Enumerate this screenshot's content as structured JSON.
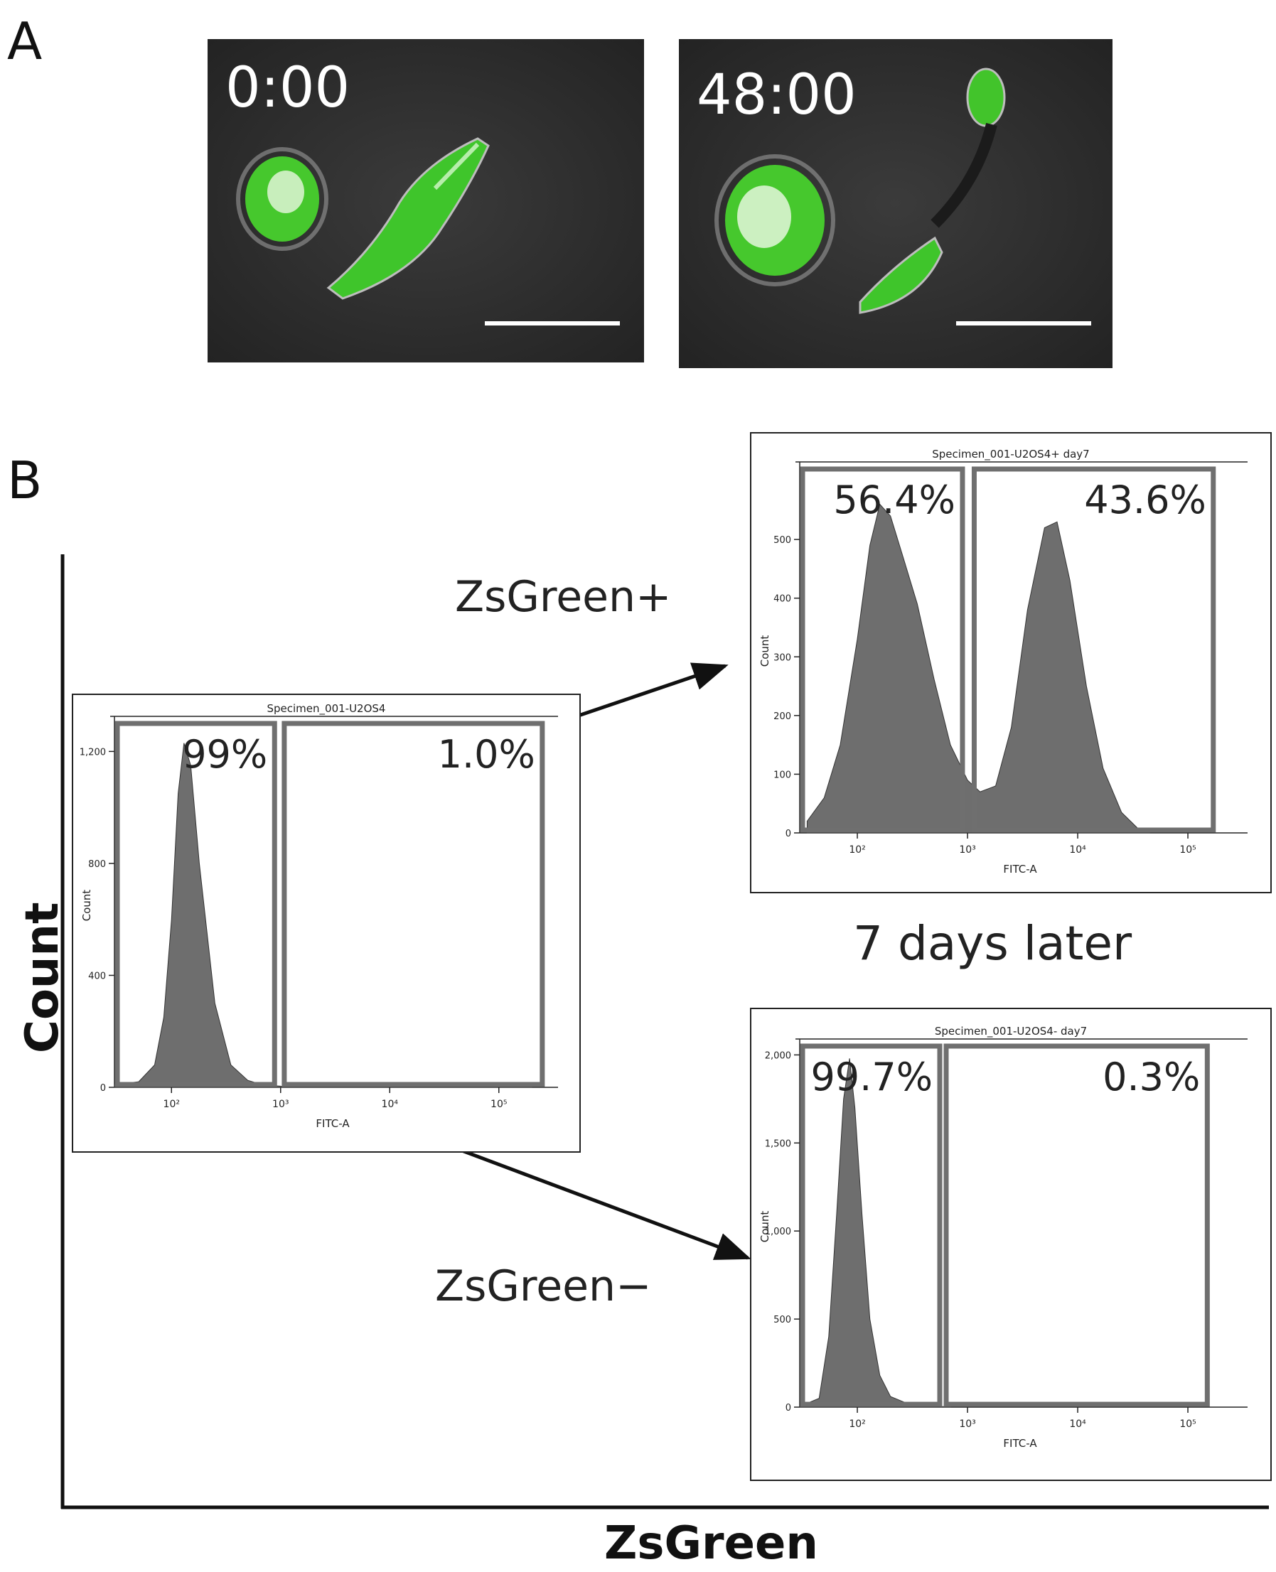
{
  "panelA": {
    "letter": "A",
    "frames": [
      {
        "time": "0:00"
      },
      {
        "time": "48:00"
      }
    ]
  },
  "panelB": {
    "letter": "B",
    "y_axis_label": "Count",
    "x_axis_label": "ZsGreen",
    "arrow_up_label": "ZsGreen+",
    "arrow_down_label": "ZsGreen−",
    "later_label": "7 days later"
  },
  "colors": {
    "histogram_fill": "#6e6e6e",
    "gate_stroke": "#6f6f6f",
    "cell_green": "#3dc22a"
  },
  "chart_data": [
    {
      "id": "main",
      "type": "area",
      "title": "Specimen_001-U2OS4",
      "xlabel": "FITC-A",
      "ylabel": "Count",
      "x_scale": "log",
      "xlim": [
        30,
        300000
      ],
      "ylim": [
        0,
        1300
      ],
      "x_ticks": [
        "10²",
        "10³",
        "10⁴",
        "10⁵"
      ],
      "y_ticks": [
        "1,200",
        "800",
        "400",
        "0"
      ],
      "y_tick_values": [
        1200,
        800,
        400,
        0
      ],
      "x": [
        30,
        50,
        70,
        85,
        100,
        115,
        130,
        150,
        180,
        250,
        350,
        500,
        700,
        1000,
        10000,
        100000,
        200000
      ],
      "y": [
        10,
        20,
        80,
        250,
        600,
        1050,
        1230,
        1150,
        800,
        300,
        80,
        25,
        8,
        4,
        3,
        5,
        3
      ],
      "gates": [
        {
          "label": "99%",
          "from": 30,
          "to": 880
        },
        {
          "label": "1.0%",
          "from": 1080,
          "to": 250000
        }
      ]
    },
    {
      "id": "positive_day7",
      "type": "area",
      "title": "Specimen_001-U2OS4+ day7",
      "xlabel": "FITC-A",
      "ylabel": "Count",
      "x_scale": "log",
      "xlim": [
        30,
        300000
      ],
      "ylim": [
        0,
        620
      ],
      "x_ticks": [
        "10²",
        "10³",
        "10⁴",
        "10⁵"
      ],
      "y_ticks": [
        "500",
        "400",
        "300",
        "200",
        "100",
        "0"
      ],
      "y_tick_values": [
        500,
        400,
        300,
        200,
        100,
        0
      ],
      "x": [
        35,
        50,
        70,
        100,
        130,
        160,
        200,
        260,
        350,
        500,
        700,
        1000,
        1300,
        1800,
        2500,
        3500,
        5000,
        6500,
        8500,
        12000,
        17000,
        25000,
        35000,
        45000
      ],
      "y": [
        20,
        60,
        150,
        330,
        490,
        560,
        540,
        470,
        390,
        260,
        150,
        90,
        70,
        80,
        180,
        380,
        520,
        530,
        430,
        250,
        110,
        35,
        8,
        2
      ],
      "gates": [
        {
          "label": "56.4%",
          "from": 30,
          "to": 900
        },
        {
          "label": "43.6%",
          "from": 1150,
          "to": 170000
        }
      ]
    },
    {
      "id": "negative_day7",
      "type": "area",
      "title": "Specimen_001-U2OS4- day7",
      "xlabel": "FITC-A",
      "ylabel": "Count",
      "x_scale": "log",
      "xlim": [
        30,
        300000
      ],
      "ylim": [
        0,
        2050
      ],
      "x_ticks": [
        "10²",
        "10³",
        "10⁴",
        "10⁵"
      ],
      "y_ticks": [
        "2,000",
        "1,500",
        "1,000",
        "500",
        "0"
      ],
      "y_tick_values": [
        2000,
        1500,
        1000,
        500,
        0
      ],
      "x": [
        30,
        45,
        55,
        65,
        75,
        85,
        95,
        110,
        130,
        160,
        200,
        300,
        500,
        700
      ],
      "y": [
        5,
        50,
        400,
        1100,
        1750,
        1980,
        1700,
        1100,
        500,
        180,
        60,
        15,
        4,
        2
      ],
      "gates": [
        {
          "label": "99.7%",
          "from": 30,
          "to": 560
        },
        {
          "label": "0.3%",
          "from": 640,
          "to": 150000
        }
      ]
    }
  ]
}
